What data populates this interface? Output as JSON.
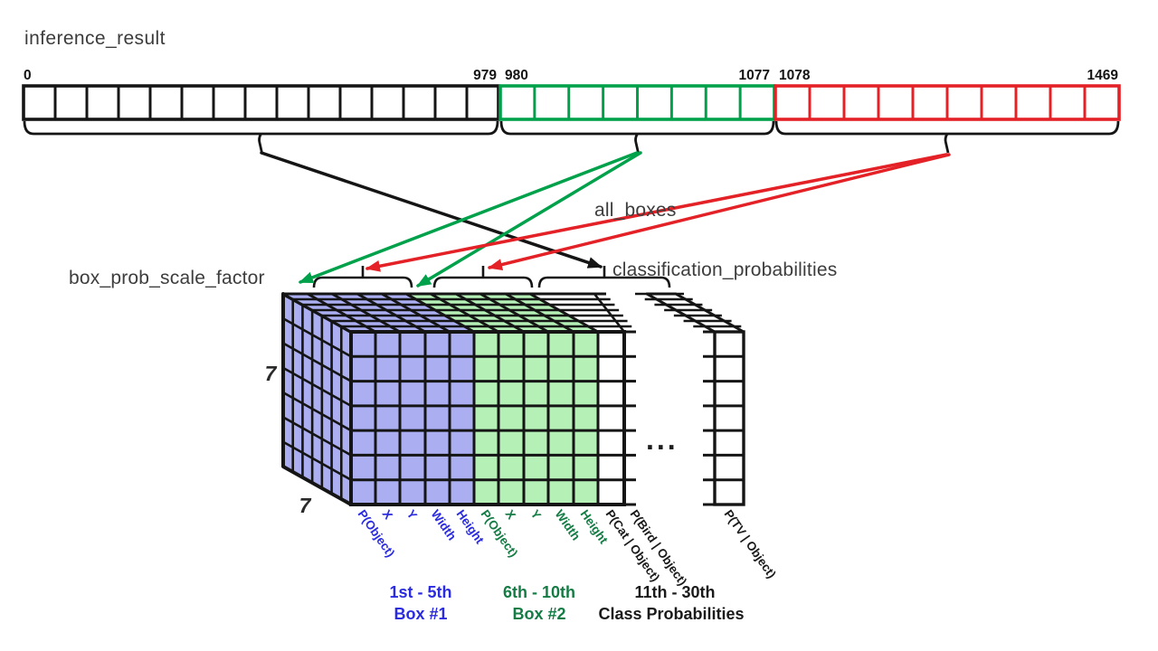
{
  "title": "inference_result",
  "colors": {
    "line_black": "#151515",
    "section_green": "#00a14b",
    "section_red": "#e32126",
    "cube_blue": "#abaff2",
    "cube_green": "#b5f0b6",
    "label_dim": "#3d3d3d",
    "text_blue": "#2b2bdf",
    "text_green": "#157c45"
  },
  "bar": {
    "sections": [
      {
        "name": "black-section",
        "color": "#151515",
        "start_label": "0",
        "end_label": "979",
        "cells": 15
      },
      {
        "name": "green-section",
        "color": "#00a14b",
        "start_label": "980",
        "end_label": "1077",
        "cells": 8
      },
      {
        "name": "red-section",
        "color": "#e32126",
        "start_label": "1078",
        "end_label": "1469",
        "cells": 10
      }
    ]
  },
  "labels": {
    "all_boxes": "all_boxes",
    "box_prob_scale_factor": "box_prob_scale_factor",
    "classification_probabilities": "classification_probabilities"
  },
  "tensor": {
    "rows_label": "7",
    "depth_label": "7",
    "columns_box1": [
      "P(Object)",
      "X",
      "Y",
      "Width",
      "Height"
    ],
    "columns_box2": [
      "P(Object)",
      "X",
      "Y",
      "Width",
      "Height"
    ],
    "columns_classes": [
      "P(Cat | Object)",
      "P(Bird | Object)"
    ],
    "last_class": "P(TV | Object)",
    "ellipsis": "...",
    "groups": [
      {
        "line1": "1st - 5th",
        "line2": "Box #1"
      },
      {
        "line1": "6th - 10th",
        "line2": "Box #2"
      },
      {
        "line1": "11th - 30th",
        "line2": "Class Probabilities"
      }
    ]
  }
}
